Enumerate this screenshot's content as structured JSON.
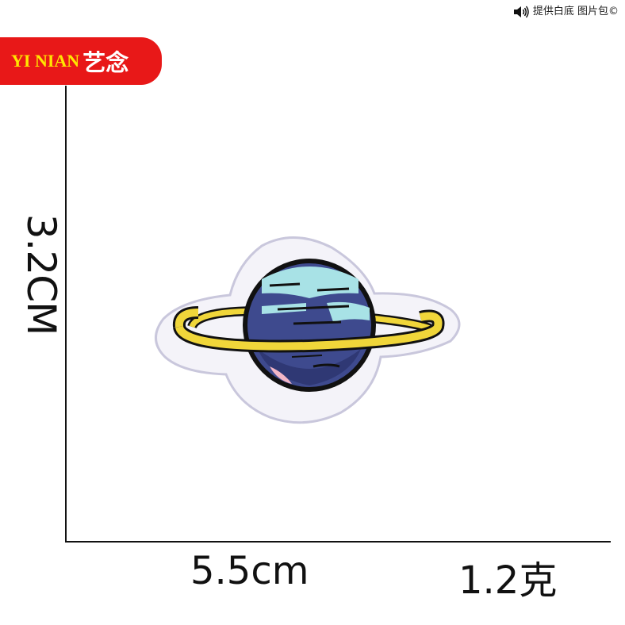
{
  "watermark": {
    "text": "提供白底 图片包©",
    "icon": "speaker-icon"
  },
  "brand": {
    "latin": "YI NIAN",
    "chinese": "艺念",
    "background_color": "#e81818",
    "latin_color": "#ffe600"
  },
  "dimensions": {
    "height": "3.2CM",
    "width": "5.5cm",
    "weight": "1.2克"
  },
  "patch": {
    "subject": "planet-patch-image",
    "colors": {
      "border": "#f2f0f8",
      "ring": "#f0d63a",
      "planet_dark": "#3e4a8e",
      "planet_light": "#a8e2e6",
      "accent_pink": "#f3b6c6",
      "outline": "#111111"
    }
  }
}
